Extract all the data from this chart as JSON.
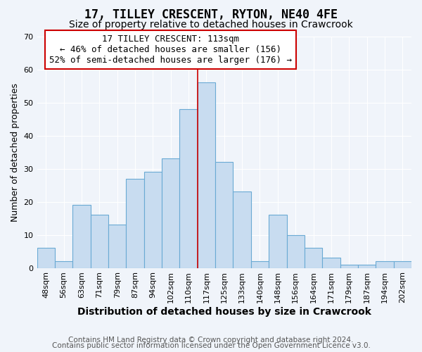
{
  "title": "17, TILLEY CRESCENT, RYTON, NE40 4FE",
  "subtitle": "Size of property relative to detached houses in Crawcrook",
  "xlabel": "Distribution of detached houses by size in Crawcrook",
  "ylabel": "Number of detached properties",
  "categories": [
    "48sqm",
    "56sqm",
    "63sqm",
    "71sqm",
    "79sqm",
    "87sqm",
    "94sqm",
    "102sqm",
    "110sqm",
    "117sqm",
    "125sqm",
    "133sqm",
    "140sqm",
    "148sqm",
    "156sqm",
    "164sqm",
    "171sqm",
    "179sqm",
    "187sqm",
    "194sqm",
    "202sqm"
  ],
  "values": [
    6,
    2,
    19,
    16,
    13,
    27,
    29,
    33,
    48,
    56,
    32,
    23,
    2,
    16,
    10,
    6,
    3,
    1,
    1,
    2,
    2
  ],
  "bar_color": "#c8dcf0",
  "bar_edge_color": "#6aaad4",
  "vline_color": "#cc0000",
  "annotation_text": "17 TILLEY CRESCENT: 113sqm\n← 46% of detached houses are smaller (156)\n52% of semi-detached houses are larger (176) →",
  "annotation_box_color": "#ffffff",
  "annotation_border_color": "#cc0000",
  "ylim": [
    0,
    70
  ],
  "yticks": [
    0,
    10,
    20,
    30,
    40,
    50,
    60,
    70
  ],
  "background_color": "#f0f4fa",
  "footer_line1": "Contains HM Land Registry data © Crown copyright and database right 2024.",
  "footer_line2": "Contains public sector information licensed under the Open Government Licence v3.0.",
  "title_fontsize": 12,
  "subtitle_fontsize": 10,
  "xlabel_fontsize": 10,
  "ylabel_fontsize": 9,
  "tick_fontsize": 8,
  "annotation_fontsize": 9,
  "footer_fontsize": 7.5
}
